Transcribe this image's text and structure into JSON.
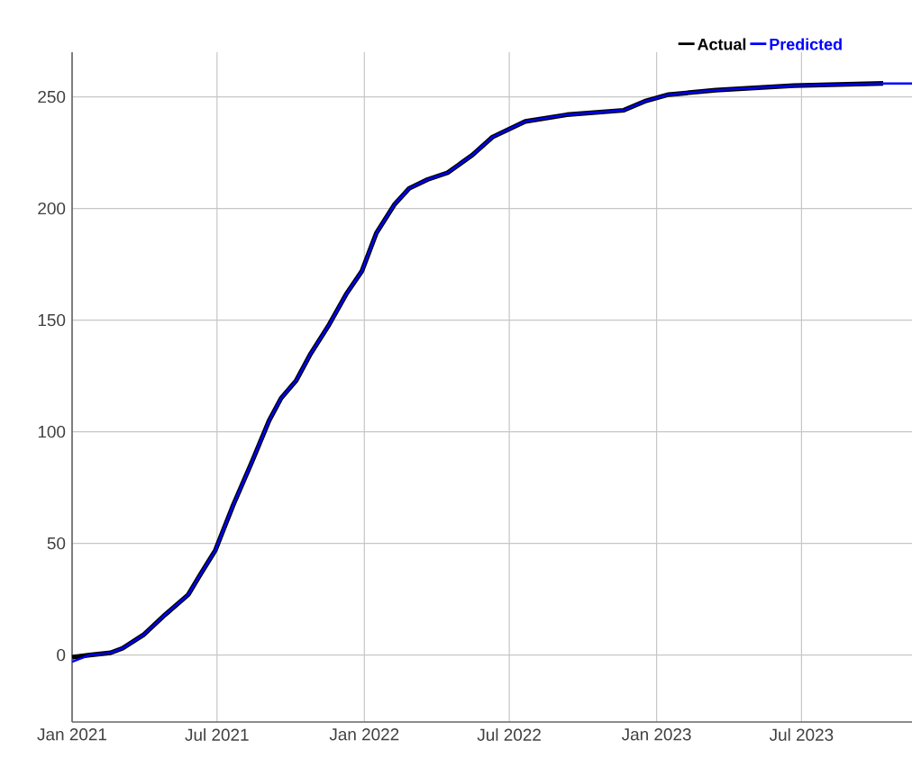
{
  "chart_data": {
    "type": "line",
    "x": [
      "2021-01-01",
      "2021-01-23",
      "2021-02-18",
      "2021-03-05",
      "2021-03-31",
      "2021-04-27",
      "2021-05-26",
      "2021-06-10",
      "2021-06-29",
      "2021-07-21",
      "2021-08-13",
      "2021-09-04",
      "2021-09-19",
      "2021-10-08",
      "2021-10-26",
      "2021-11-18",
      "2021-12-10",
      "2021-12-29",
      "2022-01-16",
      "2022-02-08",
      "2022-02-26",
      "2022-03-21",
      "2022-04-15",
      "2022-05-16",
      "2022-06-10",
      "2022-07-21",
      "2022-09-11",
      "2022-11-21",
      "2022-12-17",
      "2023-01-16",
      "2023-03-16",
      "2023-06-21",
      "2023-10-11"
    ],
    "series": [
      {
        "name": "Actual",
        "color": "#000000",
        "values": [
          -1,
          0,
          1,
          3,
          9,
          18,
          27,
          36,
          47,
          67,
          86,
          105,
          115,
          123,
          135,
          148,
          162,
          172,
          189,
          202,
          209,
          213,
          216,
          224,
          232,
          239,
          242,
          244,
          248,
          251,
          253,
          255,
          256
        ]
      },
      {
        "name": "Predicted",
        "color": "#0000ff",
        "x": [
          "2021-01-01",
          "2021-01-23",
          "2021-02-18",
          "2021-03-05",
          "2021-03-31",
          "2021-04-27",
          "2021-05-26",
          "2021-06-10",
          "2021-06-29",
          "2021-07-21",
          "2021-08-13",
          "2021-09-04",
          "2021-09-19",
          "2021-10-08",
          "2021-10-26",
          "2021-11-18",
          "2021-12-10",
          "2021-12-29",
          "2022-01-16",
          "2022-02-08",
          "2022-02-26",
          "2022-03-21",
          "2022-04-15",
          "2022-05-16",
          "2022-06-10",
          "2022-07-21",
          "2022-09-11",
          "2022-11-21",
          "2022-12-17",
          "2023-01-16",
          "2023-03-16",
          "2023-06-21",
          "2023-10-11",
          "2023-11-16"
        ],
        "values": [
          -3,
          0,
          1,
          3,
          9,
          18,
          27,
          36,
          47,
          67,
          86,
          105,
          115,
          123,
          135,
          148,
          162,
          172,
          189,
          202,
          209,
          213,
          216,
          224,
          232,
          239,
          242,
          244,
          248,
          251,
          253,
          255,
          256,
          256
        ]
      }
    ],
    "xlim": [
      "2021-01-01",
      "2023-11-16"
    ],
    "xticks": [
      {
        "value": "2021-01-01",
        "label": "Jan 2021"
      },
      {
        "value": "2021-07-01",
        "label": "Jul 2021"
      },
      {
        "value": "2022-01-01",
        "label": "Jan 2022"
      },
      {
        "value": "2022-07-01",
        "label": "Jul 2022"
      },
      {
        "value": "2023-01-01",
        "label": "Jan 2023"
      },
      {
        "value": "2023-07-01",
        "label": "Jul 2023"
      }
    ],
    "ylim": [
      -30,
      270
    ],
    "yticks": [
      0,
      50,
      100,
      150,
      200,
      250
    ],
    "grid": true,
    "legend": "top right",
    "marker": "none",
    "line_style": "solid"
  }
}
